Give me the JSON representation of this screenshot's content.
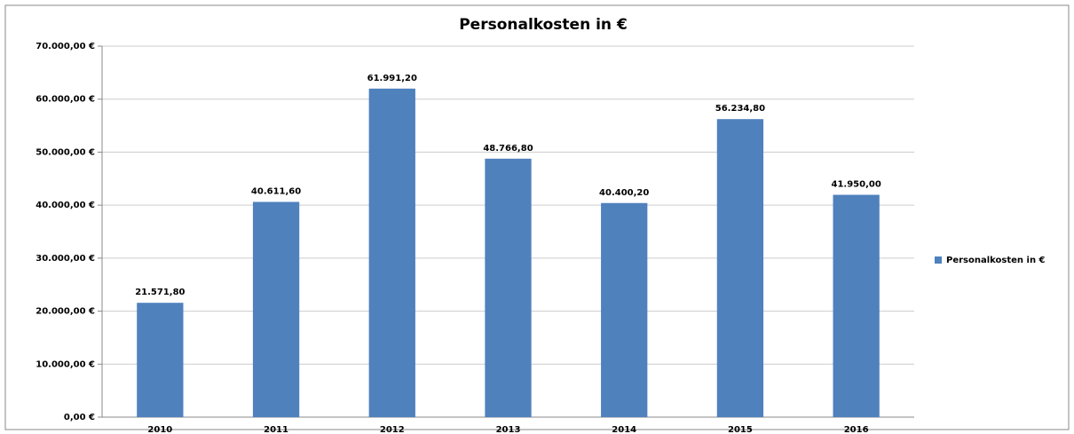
{
  "chart_data": {
    "type": "bar",
    "title": "Personalkosten in €",
    "categories": [
      "2010",
      "2011",
      "2012",
      "2013",
      "2014",
      "2015",
      "2016"
    ],
    "series": [
      {
        "name": "Personalkosten in €",
        "color": "#4f81bd",
        "values": [
          21571.8,
          40611.6,
          61991.2,
          48766.8,
          40400.2,
          56234.8,
          41950.0
        ],
        "value_labels": [
          "21.571,80",
          "40.611,60",
          "61.991,20",
          "48.766,80",
          "40.400,20",
          "56.234,80",
          "41.950,00"
        ]
      }
    ],
    "ylim": [
      0,
      70000
    ],
    "yticks": [
      {
        "value": 0,
        "label": "0,00 €"
      },
      {
        "value": 10000,
        "label": "10.000,00 €"
      },
      {
        "value": 20000,
        "label": "20.000,00 €"
      },
      {
        "value": 30000,
        "label": "30.000,00 €"
      },
      {
        "value": 40000,
        "label": "40.000,00 €"
      },
      {
        "value": 50000,
        "label": "50.000,00 €"
      },
      {
        "value": 60000,
        "label": "60.000,00 €"
      },
      {
        "value": 70000,
        "label": "70.000,00 €"
      }
    ],
    "grid": true,
    "legend": "right"
  }
}
